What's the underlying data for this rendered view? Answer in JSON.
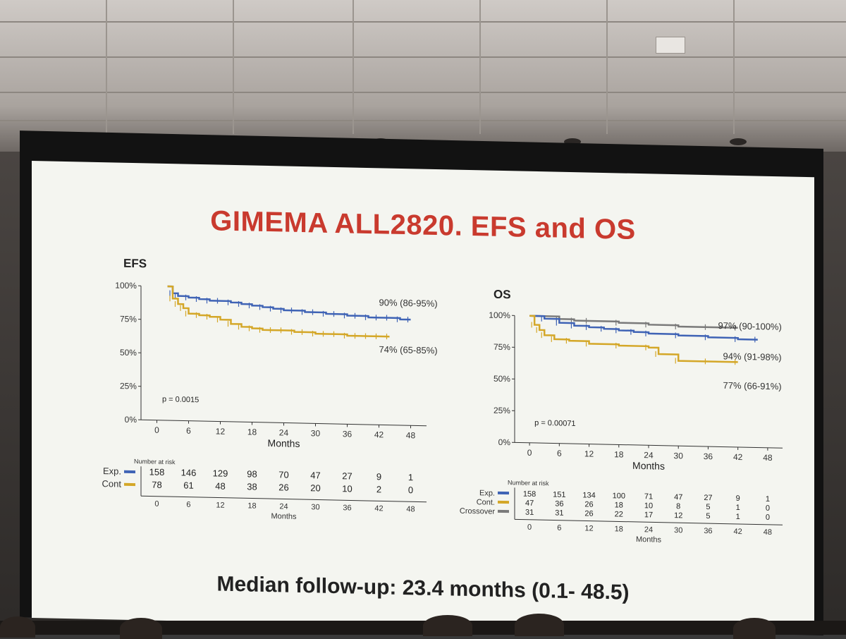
{
  "slide": {
    "title": "GIMEMA ALL2820. EFS and OS",
    "footer": "Median follow-up: 23.4 months (0.1- 48.5)"
  },
  "colors": {
    "exp": "#3f63b5",
    "cont": "#d4a728",
    "crossover": "#7a7a7a",
    "title_red": "#c93a2e"
  },
  "chart_data": [
    {
      "type": "line",
      "title": "EFS",
      "xlabel": "Months",
      "ylabel": "",
      "xticks": [
        0,
        6,
        12,
        18,
        24,
        30,
        36,
        42,
        48
      ],
      "ytick_labels": [
        "0%",
        "25%",
        "50%",
        "75%",
        "100%"
      ],
      "xlim": [
        -3,
        51
      ],
      "ylim": [
        0,
        100
      ],
      "pvalue": "p = 0.0015",
      "series": [
        {
          "key": "exp",
          "x": [
            2,
            3,
            4,
            6,
            8,
            10,
            12,
            14,
            16,
            18,
            20,
            22,
            24,
            26,
            28,
            30,
            32,
            34,
            36,
            38,
            40,
            42,
            44,
            46,
            48
          ],
          "y": [
            100,
            95,
            93,
            92,
            91,
            90,
            90,
            89,
            88,
            87,
            86,
            85,
            84,
            84,
            83,
            83,
            82,
            82,
            81,
            81,
            80,
            80,
            80,
            79,
            79
          ]
        },
        {
          "key": "cont",
          "x": [
            2,
            3,
            4,
            5,
            6,
            8,
            10,
            12,
            14,
            16,
            18,
            20,
            22,
            24,
            26,
            28,
            30,
            32,
            34,
            36,
            38,
            40,
            42,
            44
          ],
          "y": [
            100,
            91,
            87,
            84,
            80,
            79,
            78,
            76,
            73,
            71,
            70,
            69,
            69,
            69,
            68,
            68,
            67,
            67,
            67,
            66,
            66,
            66,
            66,
            66
          ]
        }
      ],
      "annotations": [
        {
          "text": "90% (86-95%)",
          "x": 42,
          "y": 89
        },
        {
          "text": "74% (65-85%)",
          "x": 42,
          "y": 54
        }
      ],
      "risk_table": {
        "header": "Number at risk",
        "xlabel": "Months",
        "times": [
          0,
          6,
          12,
          18,
          24,
          30,
          36,
          42,
          48
        ],
        "rows": [
          {
            "label": "Exp.",
            "color_key": "exp",
            "values": [
              158,
              146,
              129,
              98,
              70,
              47,
              27,
              9,
              1
            ]
          },
          {
            "label": "Cont",
            "color_key": "cont",
            "values": [
              78,
              61,
              48,
              38,
              26,
              20,
              10,
              2,
              0
            ]
          }
        ]
      }
    },
    {
      "type": "line",
      "title": "OS",
      "xlabel": "Months",
      "ylabel": "",
      "xticks": [
        0,
        6,
        12,
        18,
        24,
        30,
        36,
        42,
        48
      ],
      "ytick_labels": [
        "0%",
        "25%",
        "50%",
        "75%",
        "100%"
      ],
      "xlim": [
        -3,
        51
      ],
      "ylim": [
        0,
        100
      ],
      "pvalue": "p = 0.00071",
      "series": [
        {
          "key": "crossover",
          "x": [
            0,
            6,
            9,
            12,
            18,
            24,
            30,
            36,
            42
          ],
          "y": [
            100,
            98,
            97,
            97,
            96,
            95,
            94,
            94,
            94
          ]
        },
        {
          "key": "exp",
          "x": [
            0,
            3,
            6,
            9,
            12,
            15,
            18,
            21,
            24,
            30,
            36,
            42,
            46
          ],
          "y": [
            100,
            98,
            95,
            93,
            92,
            91,
            90,
            89,
            88,
            87,
            86,
            85,
            85
          ]
        },
        {
          "key": "cont",
          "x": [
            0,
            1,
            2,
            3,
            5,
            8,
            12,
            18,
            24,
            26,
            30,
            36,
            42
          ],
          "y": [
            100,
            93,
            89,
            85,
            82,
            81,
            79,
            78,
            77,
            72,
            67,
            67,
            67
          ]
        }
      ],
      "annotations": [
        {
          "text": "97% (90-100%)",
          "x": 38,
          "y": 93
        },
        {
          "text": "94% (91-98%)",
          "x": 39,
          "y": 69
        },
        {
          "text": "77% (66-91%)",
          "x": 39,
          "y": 46
        }
      ],
      "risk_table": {
        "header": "Number at risk",
        "xlabel": "Months",
        "times": [
          0,
          6,
          12,
          18,
          24,
          30,
          36,
          42,
          48
        ],
        "rows": [
          {
            "label": "Exp.",
            "color_key": "exp",
            "values": [
              158,
              151,
              134,
              100,
              71,
              47,
              27,
              9,
              1
            ]
          },
          {
            "label": "Cont.",
            "color_key": "cont",
            "values": [
              47,
              36,
              26,
              18,
              10,
              8,
              5,
              1,
              0
            ]
          },
          {
            "label": "Crossover",
            "color_key": "crossover",
            "values": [
              31,
              31,
              26,
              22,
              17,
              12,
              5,
              1,
              0
            ]
          }
        ]
      }
    }
  ]
}
